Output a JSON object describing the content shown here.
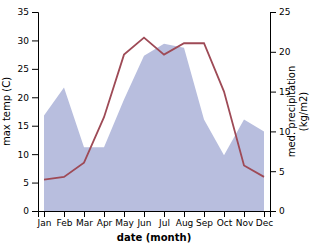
{
  "chart_data": {
    "type": "line",
    "categories": [
      "Jan",
      "Feb",
      "Mar",
      "Apr",
      "May",
      "Jun",
      "Jul",
      "Aug",
      "Sep",
      "Oct",
      "Nov",
      "Dec"
    ],
    "series": [
      {
        "type": "area",
        "axis": "y2",
        "color": "#b8bede",
        "values": [
          12,
          15.5,
          8,
          8,
          14,
          19.5,
          21,
          20.5,
          11.5,
          7,
          11.5,
          10
        ]
      },
      {
        "type": "line",
        "color": "#9e4a56",
        "values": [
          5.5,
          6.0,
          8.5,
          16.5,
          27.5,
          30.5,
          27.5,
          29.5,
          29.5,
          21.0,
          8.0,
          6.0
        ]
      }
    ],
    "xlabel": "date (month)",
    "ylabel": "max temp (C)",
    "y2label": "med. precipitation\n(kg/m2)",
    "ylim": [
      0,
      35
    ],
    "yticks": [
      0,
      5,
      10,
      15,
      20,
      25,
      30,
      35
    ],
    "y2lim": [
      0,
      25
    ],
    "y2ticks": [
      0,
      5,
      10,
      15,
      20,
      25
    ],
    "grid": false
  }
}
